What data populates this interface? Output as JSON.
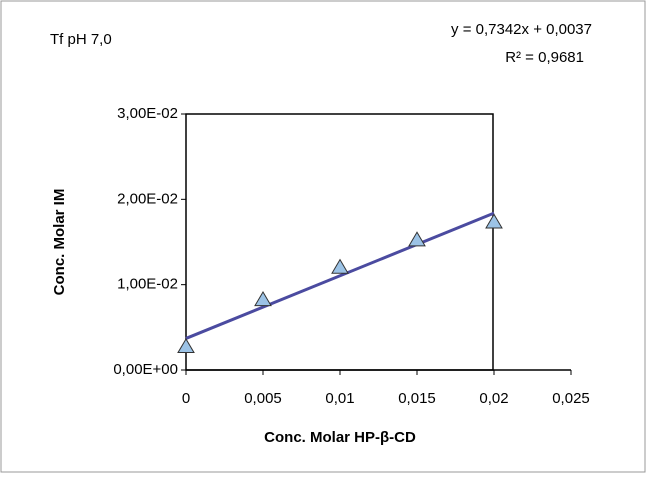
{
  "chart_data": {
    "type": "scatter",
    "title": "Tf pH 7,0",
    "x_label": "Conc. Molar HP-β-CD",
    "y_label": "Conc. Molar IM",
    "series": [
      {
        "name": null,
        "color": "#9cc3e6",
        "x": [
          0,
          0.005,
          0.01,
          0.015,
          0.02
        ],
        "values": [
          0.0027,
          0.0082,
          0.012,
          0.0152,
          0.0173
        ]
      }
    ],
    "trendline": {
      "slope": 0.7342,
      "intercept": 0.0037,
      "color": "#4b4ba0",
      "equation": "y = 0,7342x + 0,0037",
      "r2": "R² = 0,9681"
    },
    "xlim": [
      0,
      0.025
    ],
    "ylim": [
      0,
      0.03
    ],
    "xticks": [
      0,
      {
        "value": 0.005,
        "label": "0,005"
      },
      {
        "value": 0.01,
        "label": "0,01"
      },
      {
        "value": 0.015,
        "label": "0,015"
      },
      {
        "value": 0.02,
        "label": "0,02"
      },
      {
        "value": 0.025,
        "label": "0,025"
      }
    ],
    "yticks": [
      {
        "value": 0,
        "label": "0,00E+00"
      },
      {
        "value": 0.01,
        "label": "1,00E-02"
      },
      {
        "value": 0.02,
        "label": "2,00E-02"
      },
      {
        "value": 0.03,
        "label": "3,00E-02"
      }
    ],
    "grid": false
  }
}
